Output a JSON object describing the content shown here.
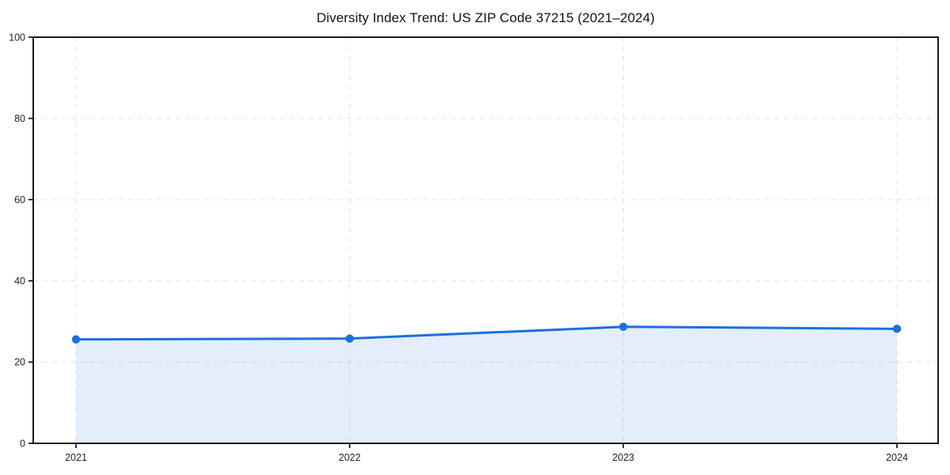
{
  "page": {
    "background_color": "#ffffff"
  },
  "chart_data": {
    "type": "line",
    "title": "Diversity Index Trend: US ZIP Code 37215 (2021–2024)",
    "series": [
      {
        "name": "Diversity Index",
        "values": [
          25.6,
          25.8,
          28.7,
          28.2
        ]
      }
    ],
    "categories": [
      "2021",
      "2022",
      "2023",
      "2024"
    ],
    "xlabel": "",
    "ylabel": "",
    "ylim": [
      0,
      100
    ],
    "yticks": [
      0,
      20,
      40,
      60,
      80,
      100
    ],
    "grid": "dashed-both-axes",
    "legend_position": "none",
    "area_fill": true,
    "marker": "circle",
    "line_color": "#1b6fe0",
    "marker_color": "#1b6fe0",
    "fill_color": "rgba(27,111,224,0.12)",
    "grid_color": "#e4e4e4",
    "axis_color": "#000000",
    "tick_label_color": "#222222",
    "title_color": "#111111"
  }
}
